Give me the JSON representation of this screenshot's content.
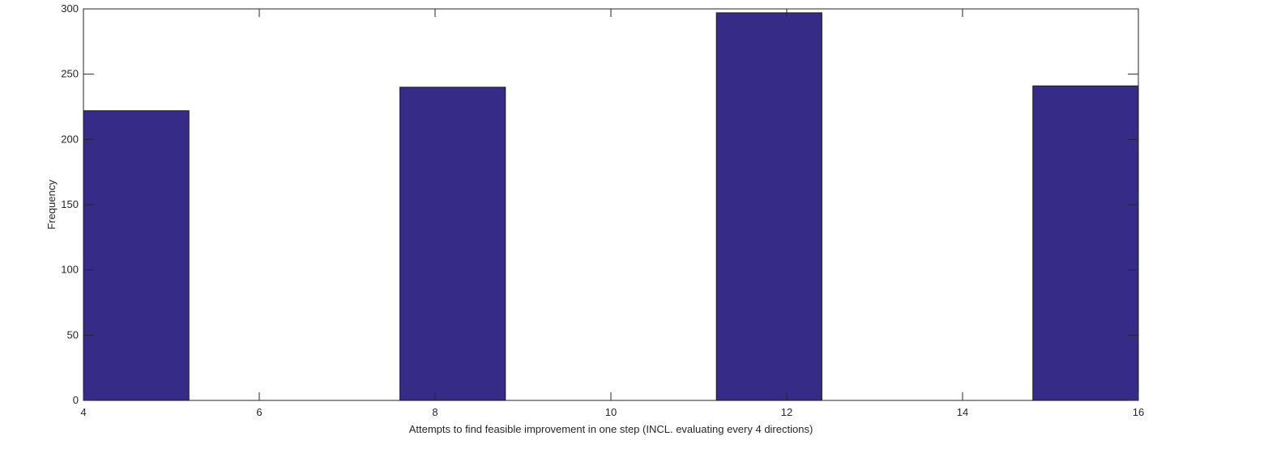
{
  "chart_data": {
    "type": "bar",
    "title": "",
    "xlabel": "Attempts to find feasible improvement in one step (INCL. evaluating every 4 directions)",
    "ylabel": "Frequency",
    "xlim": [
      4,
      16
    ],
    "ylim": [
      0,
      300
    ],
    "x_ticks": [
      4,
      6,
      8,
      10,
      12,
      14,
      16
    ],
    "y_ticks": [
      0,
      50,
      100,
      150,
      200,
      250,
      300
    ],
    "bins": [
      {
        "x_start": 4.0,
        "x_end": 5.2,
        "value": 222
      },
      {
        "x_start": 7.6,
        "x_end": 8.8,
        "value": 240
      },
      {
        "x_start": 11.2,
        "x_end": 12.4,
        "value": 297
      },
      {
        "x_start": 14.8,
        "x_end": 16.0,
        "value": 241
      }
    ],
    "grid": false,
    "bar_color": "#372b88"
  }
}
